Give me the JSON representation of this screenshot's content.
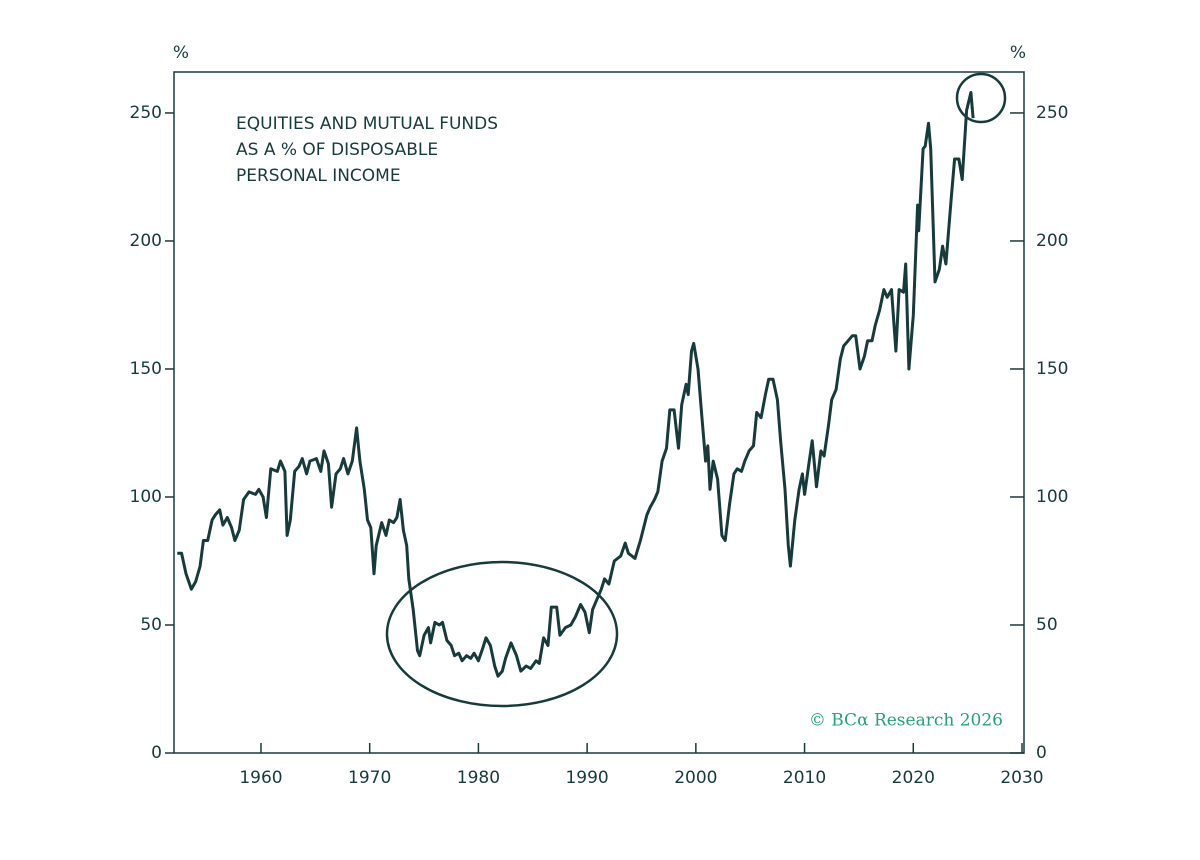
{
  "chart_data": {
    "type": "line",
    "title_lines": [
      "EQUITIES AND MUTUAL FUNDS",
      "AS A % OF DISPOSABLE",
      "PERSONAL INCOME"
    ],
    "y_label": "%",
    "y2_label": "%",
    "source": "© BCα Research 2026",
    "color": "#173b3b",
    "source_color": "#23a27a",
    "x": [
      1952.3,
      1952.7,
      1953.1,
      1953.6,
      1954.0,
      1954.4,
      1954.7,
      1955.1,
      1955.5,
      1955.8,
      1956.2,
      1956.5,
      1956.9,
      1957.3,
      1957.6,
      1958.0,
      1958.4,
      1958.9,
      1959.5,
      1959.8,
      1960.2,
      1960.5,
      1960.9,
      1961.5,
      1961.8,
      1962.2,
      1962.4,
      1962.7,
      1963.1,
      1963.5,
      1963.8,
      1964.2,
      1964.5,
      1965.1,
      1965.5,
      1965.8,
      1966.2,
      1966.5,
      1966.9,
      1967.3,
      1967.6,
      1968.0,
      1968.4,
      1968.8,
      1969.1,
      1969.5,
      1969.8,
      1970.1,
      1970.4,
      1970.6,
      1971.1,
      1971.5,
      1971.8,
      1972.2,
      1972.5,
      1972.8,
      1973.1,
      1973.4,
      1973.6,
      1974.0,
      1974.4,
      1974.6,
      1975.0,
      1975.4,
      1975.6,
      1976.0,
      1976.4,
      1976.7,
      1977.1,
      1977.5,
      1977.8,
      1978.2,
      1978.5,
      1978.9,
      1979.3,
      1979.6,
      1980.0,
      1980.4,
      1980.7,
      1981.1,
      1981.5,
      1981.8,
      1982.2,
      1982.5,
      1983.0,
      1983.5,
      1983.9,
      1984.4,
      1984.8,
      1985.3,
      1985.6,
      1986.0,
      1986.4,
      1986.7,
      1987.2,
      1987.5,
      1988.0,
      1988.5,
      1988.9,
      1989.4,
      1989.8,
      1990.2,
      1990.5,
      1990.9,
      1991.3,
      1991.6,
      1992.0,
      1992.5,
      1993.1,
      1993.5,
      1993.8,
      1994.4,
      1994.9,
      1995.5,
      1995.8,
      1996.2,
      1996.5,
      1996.9,
      1997.3,
      1997.6,
      1998.0,
      1998.4,
      1998.7,
      1999.1,
      1999.3,
      1999.6,
      1999.8,
      2000.2,
      2000.5,
      2000.9,
      2001.1,
      2001.3,
      2001.6,
      2002.0,
      2002.4,
      2002.7,
      2003.1,
      2003.5,
      2003.8,
      2004.2,
      2004.5,
      2004.9,
      2005.3,
      2005.6,
      2006.0,
      2006.4,
      2006.7,
      2007.1,
      2007.5,
      2007.8,
      2008.2,
      2008.5,
      2008.7,
      2009.1,
      2009.5,
      2009.8,
      2010.0,
      2010.4,
      2010.7,
      2011.1,
      2011.5,
      2011.8,
      2012.2,
      2012.5,
      2012.9,
      2013.3,
      2013.6,
      2014.0,
      2014.4,
      2014.7,
      2015.1,
      2015.5,
      2015.8,
      2016.2,
      2016.5,
      2016.9,
      2017.3,
      2017.6,
      2018.0,
      2018.4,
      2018.7,
      2019.1,
      2019.3,
      2019.6,
      2020.0,
      2020.4,
      2020.5,
      2020.9,
      2021.1,
      2021.4,
      2021.6,
      2022.0,
      2022.4,
      2022.7,
      2023.0,
      2023.5,
      2023.8,
      2024.2,
      2024.5,
      2024.9,
      2025.3,
      2025.5
    ],
    "values": [
      78,
      78,
      70,
      64,
      67,
      73,
      83,
      83,
      91,
      93,
      95,
      89,
      92,
      88,
      83,
      87,
      99,
      102,
      101,
      103,
      100,
      92,
      111,
      110,
      114,
      110,
      85,
      91,
      110,
      112,
      115,
      109,
      114,
      115,
      110,
      118,
      113,
      96,
      109,
      111,
      115,
      109,
      114,
      127,
      114,
      103,
      91,
      88,
      70,
      81,
      90,
      85,
      91,
      90,
      92,
      99,
      87,
      81,
      68,
      56,
      40,
      38,
      46,
      49,
      43,
      51,
      50,
      51,
      44,
      42,
      38,
      39,
      36,
      38,
      37,
      39,
      36,
      41,
      45,
      42,
      34,
      30,
      32,
      37,
      43,
      38,
      32,
      34,
      33,
      36,
      35,
      45,
      42,
      57,
      57,
      46,
      49,
      50,
      53,
      58,
      55,
      47,
      56,
      60,
      64,
      68,
      66,
      75,
      77,
      82,
      78,
      76,
      83,
      93,
      96,
      99,
      102,
      114,
      119,
      134,
      134,
      119,
      136,
      144,
      140,
      157,
      160,
      150,
      134,
      114,
      120,
      103,
      114,
      107,
      85,
      83,
      97,
      109,
      111,
      110,
      114,
      118,
      120,
      133,
      131,
      140,
      146,
      146,
      138,
      122,
      103,
      81,
      73,
      91,
      103,
      109,
      101,
      113,
      122,
      104,
      118,
      116,
      128,
      138,
      142,
      154,
      159,
      161,
      163,
      163,
      150,
      155,
      161,
      161,
      167,
      173,
      181,
      178,
      181,
      157,
      181,
      180,
      191,
      150,
      171,
      214,
      204,
      236,
      237,
      246,
      236,
      184,
      189,
      198,
      191,
      217,
      232,
      232,
      224,
      251,
      258,
      248
    ],
    "xlim": [
      1952,
      2030
    ],
    "xticks": [
      1960,
      1970,
      1980,
      1990,
      2000,
      2010,
      2020,
      2030
    ],
    "ylim": [
      0,
      266
    ],
    "yticks": [
      0,
      50,
      100,
      150,
      200,
      250
    ],
    "y2lim": [
      0,
      266
    ],
    "y2ticks": [
      0,
      50,
      100,
      150,
      200,
      250
    ]
  }
}
